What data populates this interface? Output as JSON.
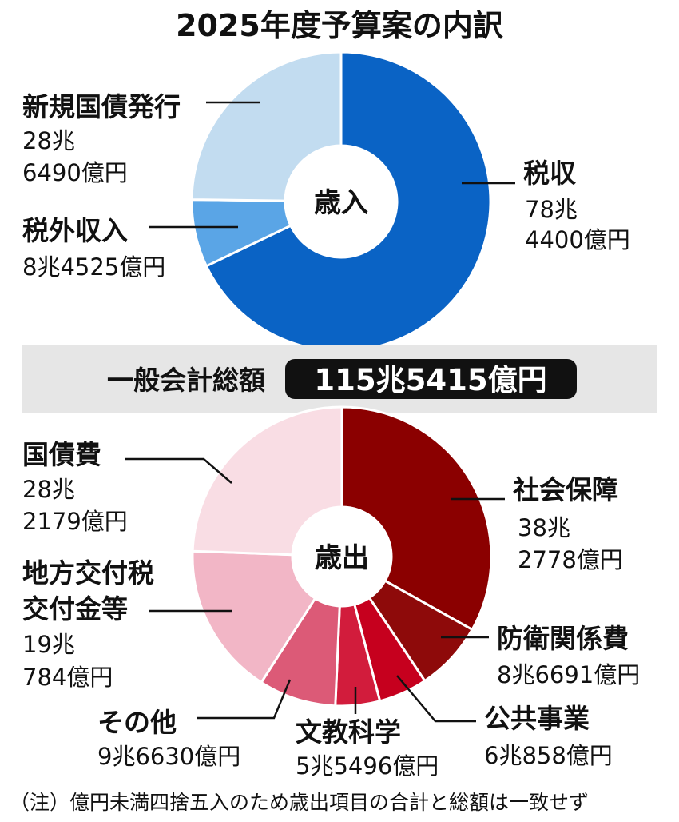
{
  "title": "2025年度予算案の内訳",
  "total": {
    "label": "一般会計総額",
    "value": "115兆5415億円"
  },
  "note": "（注）億円未満四捨五入のため歳出項目の合計と総額は一致せず",
  "colors": {
    "revenue": [
      "#0a63c5",
      "#5aa5e6",
      "#c2dcf0"
    ],
    "expenditure": [
      "#8b0000",
      "#8e0a0a",
      "#c6001e",
      "#d21c3c",
      "#dc5a77",
      "#f2b6c6",
      "#f9dde4"
    ],
    "band": "#e6e6e6",
    "total_box": "#111111"
  },
  "chart_data": [
    {
      "type": "pie",
      "center_label": "歳入",
      "unit": "億円",
      "slices": [
        {
          "name": "税収",
          "amount": [
            "78兆",
            "4400億円"
          ],
          "value": 784400
        },
        {
          "name": "税外収入",
          "amount": [
            "8兆4525億円"
          ],
          "value": 84525
        },
        {
          "name": "新規国債発行",
          "amount": [
            "28兆",
            "6490億円"
          ],
          "value": 286490
        }
      ]
    },
    {
      "type": "pie",
      "center_label": "歳出",
      "unit": "億円",
      "slices": [
        {
          "name": "社会保障",
          "amount": [
            "38兆",
            "2778億円"
          ],
          "value": 382778
        },
        {
          "name": "防衛関係費",
          "amount": [
            "8兆6691億円"
          ],
          "value": 86691
        },
        {
          "name": "公共事業",
          "amount": [
            "6兆858億円"
          ],
          "value": 60858
        },
        {
          "name": "文教科学",
          "amount": [
            "5兆5496億円"
          ],
          "value": 55496
        },
        {
          "name": "その他",
          "amount": [
            "9兆6630億円"
          ],
          "value": 96630
        },
        {
          "name": [
            "地方交付税",
            "交付金等"
          ],
          "amount": [
            "19兆",
            "784億円"
          ],
          "value": 190784
        },
        {
          "name": "国債費",
          "amount": [
            "28兆",
            "2179億円"
          ],
          "value": 282179
        }
      ]
    }
  ]
}
